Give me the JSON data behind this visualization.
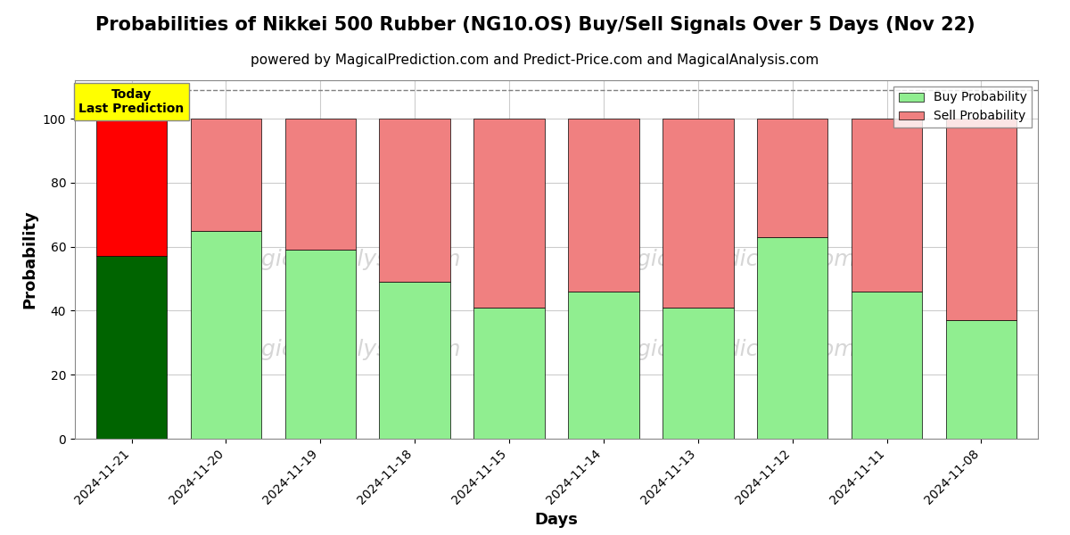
{
  "title": "Probabilities of Nikkei 500 Rubber (NG10.OS) Buy/Sell Signals Over 5 Days (Nov 22)",
  "subtitle": "powered by MagicalPrediction.com and Predict-Price.com and MagicalAnalysis.com",
  "xlabel": "Days",
  "ylabel": "Probability",
  "watermark_line1": "MagicalAnalysis.com",
  "watermark_line2": "MagicalPrediction.com",
  "dates": [
    "2024-11-21",
    "2024-11-20",
    "2024-11-19",
    "2024-11-18",
    "2024-11-15",
    "2024-11-14",
    "2024-11-13",
    "2024-11-12",
    "2024-11-11",
    "2024-11-08"
  ],
  "buy_values": [
    57,
    65,
    59,
    49,
    41,
    46,
    41,
    63,
    46,
    37
  ],
  "sell_values": [
    43,
    35,
    41,
    51,
    59,
    54,
    59,
    37,
    54,
    63
  ],
  "today_bar_buy_color": "#006400",
  "today_bar_sell_color": "#FF0000",
  "other_bar_buy_color": "#90EE90",
  "other_bar_sell_color": "#F08080",
  "today_label_bg": "#FFFF00",
  "today_label_text": "Today\nLast Prediction",
  "ylim": [
    0,
    112
  ],
  "dashed_line_y": 109,
  "legend_buy_label": "Buy Probability",
  "legend_sell_label": "Sell Probability",
  "bg_color": "#ffffff",
  "grid_color": "#cccccc",
  "title_fontsize": 15,
  "subtitle_fontsize": 11,
  "axis_label_fontsize": 13,
  "tick_fontsize": 10,
  "bar_width": 0.75
}
